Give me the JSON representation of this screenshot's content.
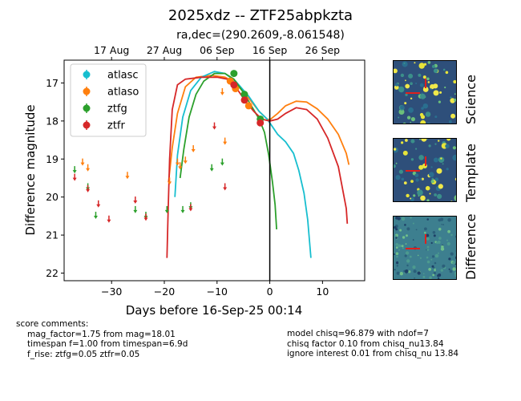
{
  "title": "2025xdz -- ZTF25abpkzta",
  "subtitle": "ra,dec=(290.2609,-8.061548)",
  "score_comments": {
    "heading": "score comments:",
    "left": [
      "mag_factor=1.75 from mag=18.01",
      "timespan f=1.00 from timespan=6.9d",
      "f_rise: ztfg=0.05 ztfr=0.05"
    ],
    "right": [
      "model chisq=96.879 with ndof=7",
      "chisq factor 0.10 from chisq_nu13.84",
      "ignore interest 0.01 from chisq_nu 13.84"
    ]
  },
  "stamps": [
    {
      "label": "Science",
      "base": "#2e4f7a"
    },
    {
      "label": "Template",
      "base": "#2e4f7a"
    },
    {
      "label": "Difference",
      "base": "#3d7f8f"
    }
  ],
  "chart_data": {
    "type": "scatter",
    "xlabel": "Days before 16-Sep-25 00:14",
    "ylabel": "Difference magnitude",
    "xlim": [
      -39,
      18
    ],
    "ylim": [
      22.2,
      16.4
    ],
    "xticks": [
      -30,
      -20,
      -10,
      0,
      10
    ],
    "yticks": [
      17,
      18,
      19,
      20,
      21,
      22
    ],
    "top_ticks": [
      {
        "x": -30,
        "label": "17 Aug"
      },
      {
        "x": -20,
        "label": "27 Aug"
      },
      {
        "x": -10,
        "label": "06 Sep"
      },
      {
        "x": 0,
        "label": "16 Sep"
      },
      {
        "x": 10,
        "label": "26 Sep"
      }
    ],
    "vline_x": 0,
    "legend": {
      "position": "top-left",
      "entries": [
        {
          "name": "atlasc",
          "color": "#17becf"
        },
        {
          "name": "atlaso",
          "color": "#ff7f0e"
        },
        {
          "name": "ztfg",
          "color": "#2ca02c"
        },
        {
          "name": "ztfr",
          "color": "#d62728"
        }
      ]
    },
    "detections": [
      {
        "band": "atlaso",
        "color": "#ff7f0e",
        "points": [
          [
            -7.5,
            16.95
          ],
          [
            -6.5,
            17.15
          ],
          [
            -4.0,
            17.6
          ]
        ]
      },
      {
        "band": "ztfg",
        "color": "#2ca02c",
        "points": [
          [
            -6.8,
            16.75
          ],
          [
            -4.8,
            17.3
          ],
          [
            -1.8,
            17.95
          ]
        ]
      },
      {
        "band": "ztfr",
        "color": "#d62728",
        "points": [
          [
            -6.8,
            17.05
          ],
          [
            -4.8,
            17.45
          ],
          [
            -1.8,
            18.05
          ]
        ]
      }
    ],
    "upper_limits": [
      {
        "band": "atlaso",
        "color": "#ff7f0e",
        "points": [
          [
            -35.5,
            19.05
          ],
          [
            -34.5,
            19.2
          ],
          [
            -27,
            19.4
          ],
          [
            -19,
            19.55
          ],
          [
            -17.5,
            19.05
          ],
          [
            -17,
            19.15
          ],
          [
            -16,
            19.0
          ],
          [
            -14.5,
            18.7
          ],
          [
            -8.5,
            18.5
          ],
          [
            -9,
            17.2
          ]
        ]
      },
      {
        "band": "ztfg",
        "color": "#2ca02c",
        "points": [
          [
            -37,
            19.25
          ],
          [
            -34.5,
            19.7
          ],
          [
            -33,
            20.45
          ],
          [
            -25.5,
            20.3
          ],
          [
            -23.5,
            20.45
          ],
          [
            -19.5,
            20.3
          ],
          [
            -16.5,
            20.3
          ],
          [
            -15,
            20.2
          ],
          [
            -11,
            19.2
          ],
          [
            -9,
            19.05
          ]
        ]
      },
      {
        "band": "ztfr",
        "color": "#d62728",
        "points": [
          [
            -37,
            19.45
          ],
          [
            -34.5,
            19.75
          ],
          [
            -32.5,
            20.15
          ],
          [
            -30.5,
            20.55
          ],
          [
            -25.5,
            20.05
          ],
          [
            -23.5,
            20.5
          ],
          [
            -15,
            20.25
          ],
          [
            -10.5,
            18.1
          ],
          [
            -8.5,
            19.7
          ]
        ]
      }
    ],
    "model_curves": [
      {
        "band": "atlaso",
        "color": "#ff7f0e",
        "points": [
          [
            -19.2,
            19.6
          ],
          [
            -18.5,
            18.7
          ],
          [
            -17.5,
            17.8
          ],
          [
            -16,
            17.1
          ],
          [
            -14,
            16.85
          ],
          [
            -11,
            16.8
          ],
          [
            -8.5,
            16.85
          ],
          [
            -6.5,
            17.0
          ],
          [
            -4,
            17.4
          ],
          [
            -2,
            17.75
          ],
          [
            -0.5,
            17.95
          ],
          [
            0,
            17.97
          ],
          [
            1.5,
            17.8
          ],
          [
            3,
            17.6
          ],
          [
            5,
            17.48
          ],
          [
            7,
            17.5
          ],
          [
            9,
            17.68
          ],
          [
            11,
            17.95
          ],
          [
            13,
            18.35
          ],
          [
            14.5,
            18.85
          ],
          [
            15,
            19.15
          ]
        ]
      },
      {
        "band": "atlasc",
        "color": "#17becf",
        "points": [
          [
            -18.0,
            20.0
          ],
          [
            -17.5,
            18.9
          ],
          [
            -16.5,
            17.9
          ],
          [
            -15,
            17.2
          ],
          [
            -13,
            16.85
          ],
          [
            -10.5,
            16.7
          ],
          [
            -8.5,
            16.75
          ],
          [
            -6.5,
            16.95
          ],
          [
            -4,
            17.35
          ],
          [
            -2,
            17.75
          ],
          [
            -0.5,
            17.95
          ],
          [
            0,
            18.05
          ],
          [
            1.5,
            18.35
          ],
          [
            3,
            18.55
          ],
          [
            4.5,
            18.85
          ],
          [
            5.5,
            19.3
          ],
          [
            6.5,
            19.9
          ],
          [
            7.2,
            20.6
          ],
          [
            7.8,
            21.6
          ]
        ]
      },
      {
        "band": "ztfg",
        "color": "#2ca02c",
        "points": [
          [
            -17.0,
            19.5
          ],
          [
            -16.3,
            18.75
          ],
          [
            -15.3,
            17.9
          ],
          [
            -14,
            17.3
          ],
          [
            -12.5,
            16.95
          ],
          [
            -10.5,
            16.75
          ],
          [
            -8.5,
            16.75
          ],
          [
            -6.8,
            16.9
          ],
          [
            -5,
            17.25
          ],
          [
            -3.5,
            17.6
          ],
          [
            -2,
            17.95
          ],
          [
            -1,
            18.3
          ],
          [
            -0.2,
            18.9
          ],
          [
            0.5,
            19.6
          ],
          [
            1.0,
            20.2
          ],
          [
            1.3,
            20.85
          ]
        ]
      },
      {
        "band": "ztfr",
        "color": "#d62728",
        "points": [
          [
            -19.5,
            21.6
          ],
          [
            -19.3,
            20.5
          ],
          [
            -19.0,
            19.0
          ],
          [
            -18.5,
            17.7
          ],
          [
            -17.5,
            17.05
          ],
          [
            -16,
            16.9
          ],
          [
            -13,
            16.85
          ],
          [
            -10,
            16.85
          ],
          [
            -8,
            16.9
          ],
          [
            -6,
            17.2
          ],
          [
            -4.5,
            17.5
          ],
          [
            -3,
            17.75
          ],
          [
            -1.5,
            17.95
          ],
          [
            0,
            18.0
          ],
          [
            1.5,
            17.95
          ],
          [
            3,
            17.8
          ],
          [
            5,
            17.65
          ],
          [
            7,
            17.7
          ],
          [
            9,
            17.95
          ],
          [
            11,
            18.45
          ],
          [
            13,
            19.2
          ],
          [
            14.5,
            20.3
          ],
          [
            14.7,
            20.7
          ]
        ]
      }
    ]
  }
}
